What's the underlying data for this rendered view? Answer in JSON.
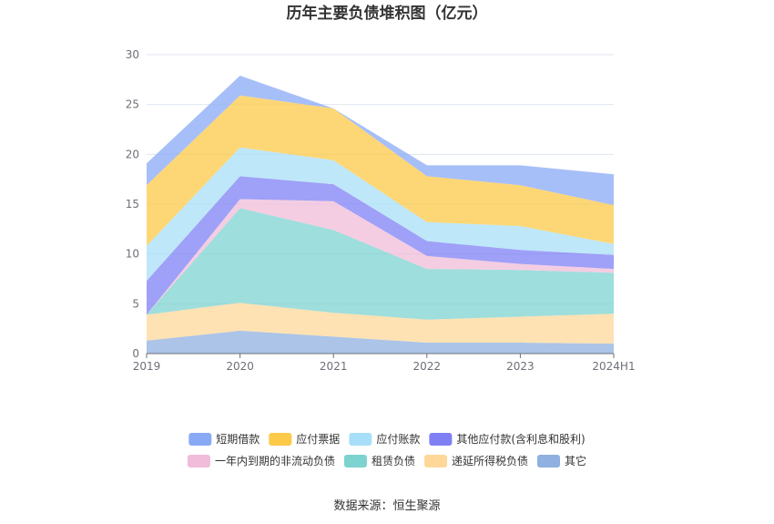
{
  "chart_data": {
    "type": "area",
    "stacked": true,
    "title": "历年主要负债堆积图（亿元）",
    "categories": [
      "2019",
      "2020",
      "2021",
      "2022",
      "2023",
      "2024H1"
    ],
    "y_ticks": [
      "0",
      "5",
      "10",
      "15",
      "20",
      "25",
      "30"
    ],
    "ylim": [
      0,
      30
    ],
    "grid": true,
    "legend_position": "bottom",
    "series": [
      {
        "name": "其它",
        "color": "#8fb0e0",
        "values": [
          1.3,
          2.3,
          1.7,
          1.1,
          1.1,
          1.0
        ]
      },
      {
        "name": "递延所得税负债",
        "color": "#fdd899",
        "values": [
          2.6,
          2.8,
          2.4,
          2.3,
          2.6,
          3.0
        ]
      },
      {
        "name": "租赁负债",
        "color": "#7dd3d0",
        "values": [
          0.0,
          9.5,
          8.3,
          5.1,
          4.7,
          4.1
        ]
      },
      {
        "name": "一年内到期的非流动负债",
        "color": "#f0bcd9",
        "values": [
          0.0,
          0.9,
          2.9,
          1.3,
          0.6,
          0.4
        ]
      },
      {
        "name": "其他应付款(含利息和股利)",
        "color": "#7f80f4",
        "values": [
          3.4,
          2.3,
          1.7,
          1.5,
          1.4,
          1.4
        ]
      },
      {
        "name": "应付账款",
        "color": "#a8dff8",
        "values": [
          3.5,
          2.9,
          2.4,
          1.9,
          2.4,
          1.1
        ]
      },
      {
        "name": "应付票据",
        "color": "#fcc948",
        "values": [
          6.1,
          5.2,
          5.2,
          4.6,
          4.1,
          3.9
        ]
      },
      {
        "name": "短期借款",
        "color": "#8aa9f5",
        "values": [
          2.2,
          2.0,
          0.0,
          1.1,
          2.0,
          3.1
        ]
      }
    ],
    "legend_order": [
      "短期借款",
      "应付票据",
      "应付账款",
      "其他应付款(含利息和股利)",
      "一年内到期的非流动负债",
      "租赁负债",
      "递延所得税负债",
      "其它"
    ]
  },
  "source_text": "数据来源：恒生聚源"
}
